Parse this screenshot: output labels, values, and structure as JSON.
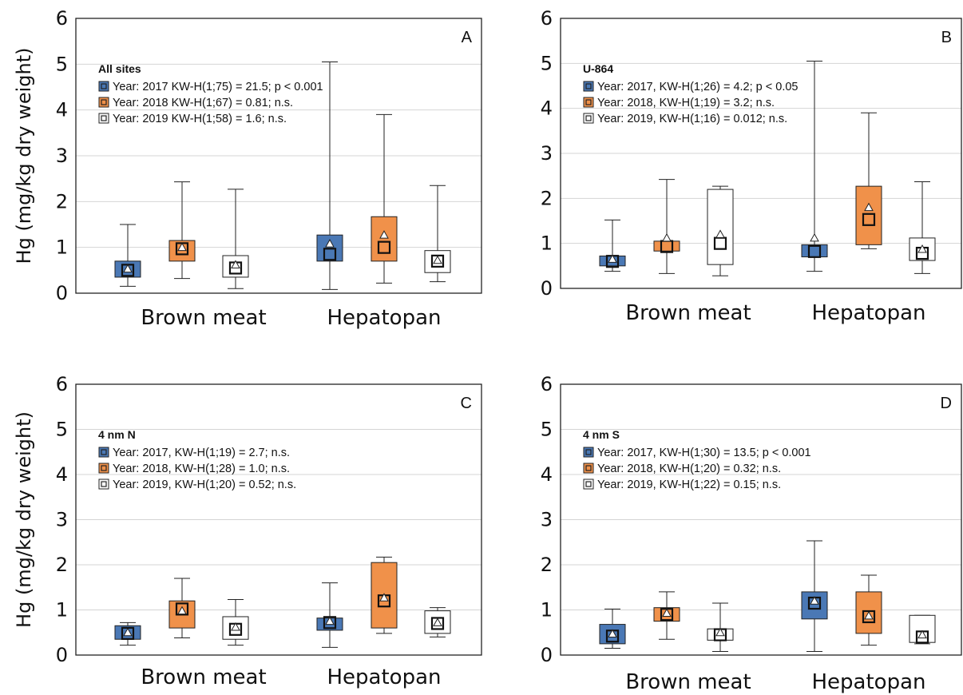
{
  "figure": {
    "ylabel": "Hg (mg/kg dry weight)",
    "colors": {
      "2017": "#4a78b5",
      "2018": "#f0914a",
      "2019": "#ffffff"
    },
    "year_labels": [
      "Year: 2017",
      "Year: 2018",
      "Year: 2019"
    ]
  },
  "chart_data": [
    {
      "type": "box",
      "letter": "A",
      "legend_title": "All sites",
      "legend": [
        "Year: 2017  KW-H(1;75) = 21.5; p < 0.001",
        "Year: 2018  KW-H(1;67) = 0.81; n.s.",
        "Year: 2019  KW-H(1;58) = 1.6; n.s."
      ],
      "categories": [
        "Brown meat",
        "Hepatopan"
      ],
      "ylim": [
        0,
        6
      ],
      "yticks": [
        "0",
        "1",
        "2",
        "3",
        "4",
        "5",
        "6"
      ],
      "grid": true,
      "series": [
        {
          "name": "Year: 2017",
          "boxes": [
            {
              "min": 0.15,
              "q1": 0.35,
              "median": 0.5,
              "q3": 0.7,
              "max": 1.5,
              "mean": 0.53
            },
            {
              "min": 0.08,
              "q1": 0.7,
              "median": 0.85,
              "q3": 1.27,
              "max": 5.05,
              "mean": 1.08
            }
          ]
        },
        {
          "name": "Year: 2018",
          "boxes": [
            {
              "min": 0.32,
              "q1": 0.7,
              "median": 0.97,
              "q3": 1.15,
              "max": 2.43,
              "mean": 1.0
            },
            {
              "min": 0.22,
              "q1": 0.7,
              "median": 1.0,
              "q3": 1.67,
              "max": 3.9,
              "mean": 1.27
            }
          ]
        },
        {
          "name": "Year: 2019",
          "boxes": [
            {
              "min": 0.1,
              "q1": 0.35,
              "median": 0.55,
              "q3": 0.82,
              "max": 2.27,
              "mean": 0.62
            },
            {
              "min": 0.25,
              "q1": 0.45,
              "median": 0.7,
              "q3": 0.93,
              "max": 2.35,
              "mean": 0.72
            }
          ]
        }
      ]
    },
    {
      "type": "box",
      "letter": "B",
      "legend_title": "U-864",
      "legend": [
        "Year: 2017, KW-H(1;26) = 4.2; p < 0.05",
        "Year: 2018, KW-H(1;19) = 3.2; n.s.",
        "Year: 2019, KW-H(1;16) = 0.012; n.s."
      ],
      "categories": [
        "Brown meat",
        "Hepatopan"
      ],
      "ylim": [
        0,
        6
      ],
      "yticks": [
        "0",
        "1",
        "2",
        "3",
        "4",
        "5",
        "6"
      ],
      "grid": true,
      "series": [
        {
          "name": "Year: 2017",
          "boxes": [
            {
              "min": 0.38,
              "q1": 0.5,
              "median": 0.6,
              "q3": 0.72,
              "max": 1.52,
              "mean": 0.65
            },
            {
              "min": 0.38,
              "q1": 0.7,
              "median": 0.82,
              "q3": 0.97,
              "max": 5.05,
              "mean": 1.12
            }
          ]
        },
        {
          "name": "Year: 2018",
          "boxes": [
            {
              "min": 0.33,
              "q1": 0.83,
              "median": 0.93,
              "q3": 1.05,
              "max": 2.42,
              "mean": 1.12
            },
            {
              "min": 0.88,
              "q1": 0.97,
              "median": 1.53,
              "q3": 2.27,
              "max": 3.9,
              "mean": 1.8
            }
          ]
        },
        {
          "name": "Year: 2019",
          "boxes": [
            {
              "min": 0.28,
              "q1": 0.53,
              "median": 1.0,
              "q3": 2.2,
              "max": 2.27,
              "mean": 1.2
            },
            {
              "min": 0.33,
              "q1": 0.62,
              "median": 0.78,
              "q3": 1.12,
              "max": 2.37,
              "mean": 0.87
            }
          ]
        }
      ]
    },
    {
      "type": "box",
      "letter": "C",
      "legend_title": "4 nm N",
      "legend": [
        "Year: 2017, KW-H(1;19) = 2.7; n.s.",
        "Year: 2018, KW-H(1;28) = 1.0; n.s.",
        "Year: 2019, KW-H(1;20) = 0.52; n.s."
      ],
      "categories": [
        "Brown meat",
        "Hepatopan"
      ],
      "ylim": [
        0,
        6
      ],
      "yticks": [
        "0",
        "1",
        "2",
        "3",
        "4",
        "5",
        "6"
      ],
      "grid": true,
      "series": [
        {
          "name": "Year: 2017",
          "boxes": [
            {
              "min": 0.22,
              "q1": 0.35,
              "median": 0.48,
              "q3": 0.65,
              "max": 0.72,
              "mean": 0.5
            },
            {
              "min": 0.17,
              "q1": 0.55,
              "median": 0.72,
              "q3": 0.82,
              "max": 1.6,
              "mean": 0.75
            }
          ]
        },
        {
          "name": "Year: 2018",
          "boxes": [
            {
              "min": 0.38,
              "q1": 0.6,
              "median": 1.02,
              "q3": 1.2,
              "max": 1.7,
              "mean": 0.98
            },
            {
              "min": 0.48,
              "q1": 0.6,
              "median": 1.2,
              "q3": 2.05,
              "max": 2.17,
              "mean": 1.27
            }
          ]
        },
        {
          "name": "Year: 2019",
          "boxes": [
            {
              "min": 0.22,
              "q1": 0.35,
              "median": 0.57,
              "q3": 0.85,
              "max": 1.23,
              "mean": 0.62
            },
            {
              "min": 0.4,
              "q1": 0.48,
              "median": 0.7,
              "q3": 0.98,
              "max": 1.05,
              "mean": 0.72
            }
          ]
        }
      ]
    },
    {
      "type": "box",
      "letter": "D",
      "legend_title": "4 nm S",
      "legend": [
        "Year: 2017, KW-H(1;30) = 13.5; p < 0.001",
        "Year: 2018, KW-H(1;20) = 0.32; n.s.",
        "Year: 2019, KW-H(1;22) = 0.15; n.s."
      ],
      "categories": [
        "Brown meat",
        "Hepatopan"
      ],
      "ylim": [
        0,
        6
      ],
      "yticks": [
        "0",
        "1",
        "2",
        "3",
        "4",
        "5",
        "6"
      ],
      "grid": true,
      "series": [
        {
          "name": "Year: 2017",
          "boxes": [
            {
              "min": 0.15,
              "q1": 0.25,
              "median": 0.42,
              "q3": 0.68,
              "max": 1.02,
              "mean": 0.47
            },
            {
              "min": 0.08,
              "q1": 0.8,
              "median": 1.15,
              "q3": 1.4,
              "max": 2.53,
              "mean": 1.2
            }
          ]
        },
        {
          "name": "Year: 2018",
          "boxes": [
            {
              "min": 0.35,
              "q1": 0.75,
              "median": 0.9,
              "q3": 1.05,
              "max": 1.4,
              "mean": 0.93
            },
            {
              "min": 0.22,
              "q1": 0.48,
              "median": 0.85,
              "q3": 1.4,
              "max": 1.77,
              "mean": 0.87
            }
          ]
        },
        {
          "name": "Year: 2019",
          "boxes": [
            {
              "min": 0.08,
              "q1": 0.33,
              "median": 0.45,
              "q3": 0.58,
              "max": 1.15,
              "mean": 0.5
            },
            {
              "min": 0.25,
              "q1": 0.28,
              "median": 0.4,
              "q3": 0.88,
              "max": 0.88,
              "mean": 0.45
            }
          ]
        }
      ]
    }
  ]
}
